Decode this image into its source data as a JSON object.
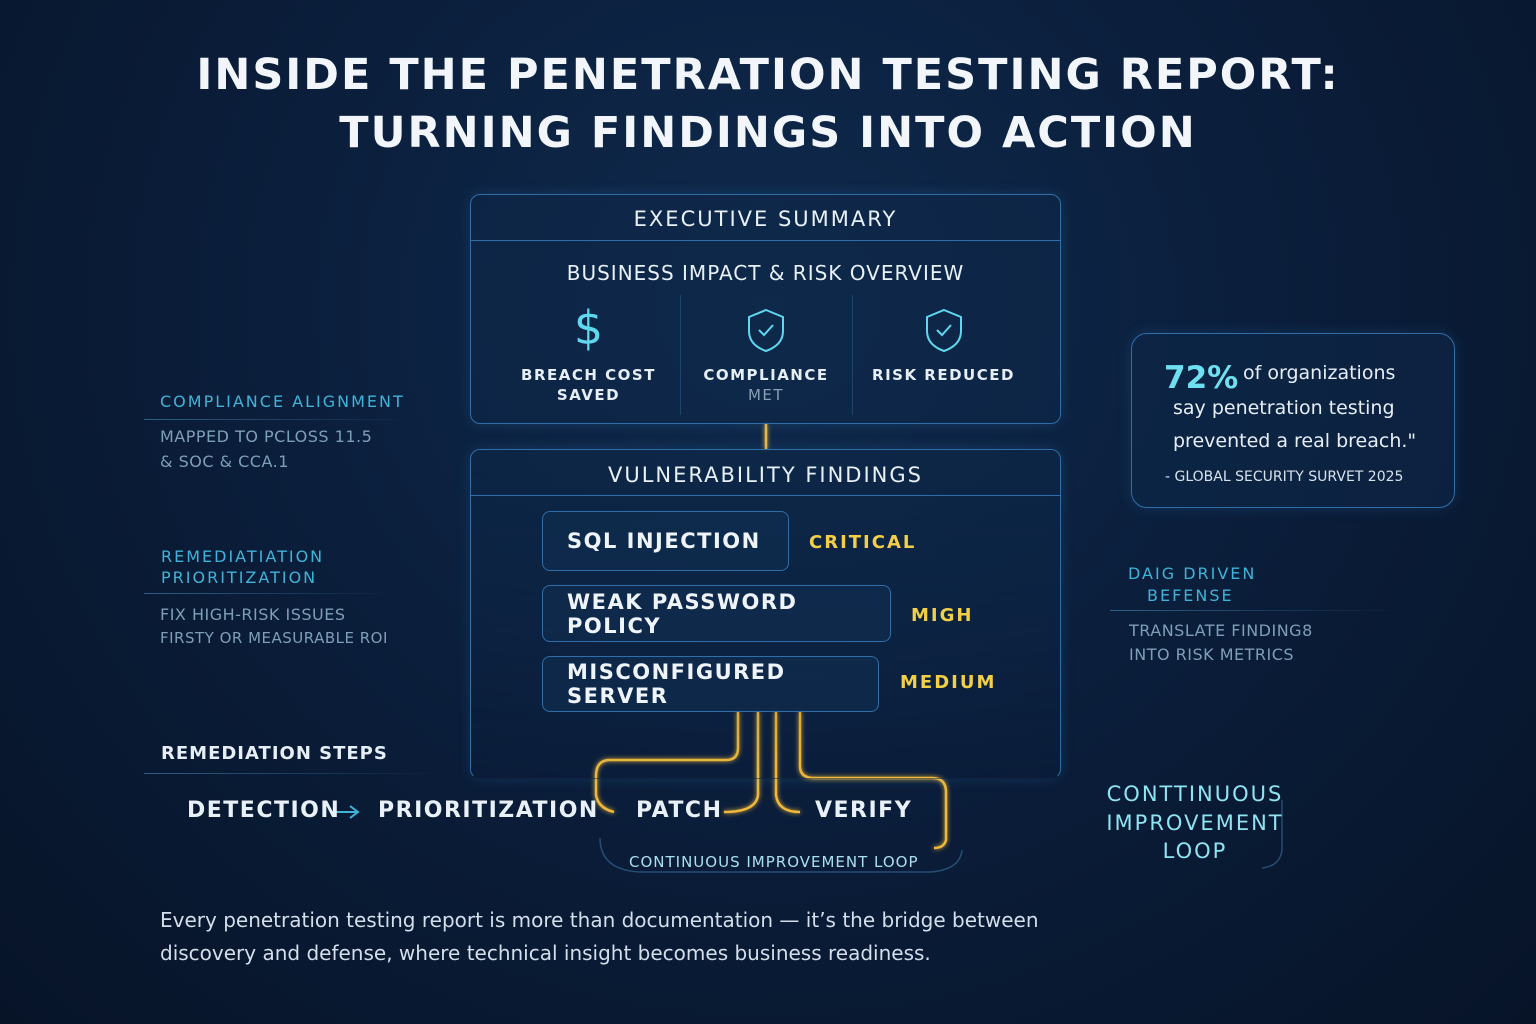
{
  "title": {
    "line1": "INSIDE THE PENETRATION TESTING REPORT:",
    "line2": "TURNING FINDINGS INTO ACTION"
  },
  "executive": {
    "header": "EXECUTIVE SUMMARY",
    "subheader": "BUSINESS IMPACT & RISK OVERVIEW",
    "metrics": [
      {
        "icon": "dollar-icon",
        "line1": "BREACH COST",
        "line2": "SAVED"
      },
      {
        "icon": "shield-check-icon",
        "line1": "COMPLIANCE",
        "line2": "MET"
      },
      {
        "icon": "shield-check-icon",
        "line1": "RISK REDUCED",
        "line2": ""
      }
    ]
  },
  "findings": {
    "header": "VULNERABILITY FINDINGS",
    "items": [
      {
        "name": "SQL INJECTION",
        "severity": "CRITICAL"
      },
      {
        "name": "WEAK PASSWORD POLICY",
        "severity": "MIGH"
      },
      {
        "name": "MISCONFIGURED SERVER",
        "severity": "MEDIUM"
      }
    ]
  },
  "left": {
    "compliance": {
      "heading": "COMPLIANCE ALIGNMENT",
      "line1": "MAPPED TO PCLOSS 11.5",
      "line2": "& SOC & CCA.1"
    },
    "remediation": {
      "heading1": "REMEDIATIATION",
      "heading2": "PRIORITIZATION",
      "line1": "FIX HIGH-RISK ISSUES",
      "line2": "FIRSTY OR MEASURABLE ROI"
    }
  },
  "stat": {
    "value": "72%",
    "line1": "of organizations",
    "line2": "say penetration testing",
    "line3": "prevented a real breach.\"",
    "source": "- GLOBAL SECURITY SURVET 2025"
  },
  "right": {
    "heading1": "DAIG DRIVEN",
    "heading2": "BEFENSE",
    "line1": "TRANSLATE FINDING8",
    "line2": "INTO RISK METRICS",
    "loop": {
      "line1": "CONTTINUOUS",
      "line2": "IMPROVEMENT",
      "line3": "LOOP"
    }
  },
  "steps": {
    "heading": "REMEDIATION STEPS",
    "items": [
      "DETECTION",
      "PRIORITIZATION",
      "PATCH",
      "VERIFY"
    ],
    "loop_label": "CONTINUOUS IMPROVEMENT LOOP"
  },
  "footer": {
    "line1": "Every penetration testing report is more than documentation — it’s the bridge between",
    "line2": "discovery and defense, where technical insight becomes business readiness."
  },
  "colors": {
    "accent": "#3fb4d8",
    "severity": "#f3cf47",
    "connector": "#f0b93a",
    "background": "#0a1c38"
  }
}
